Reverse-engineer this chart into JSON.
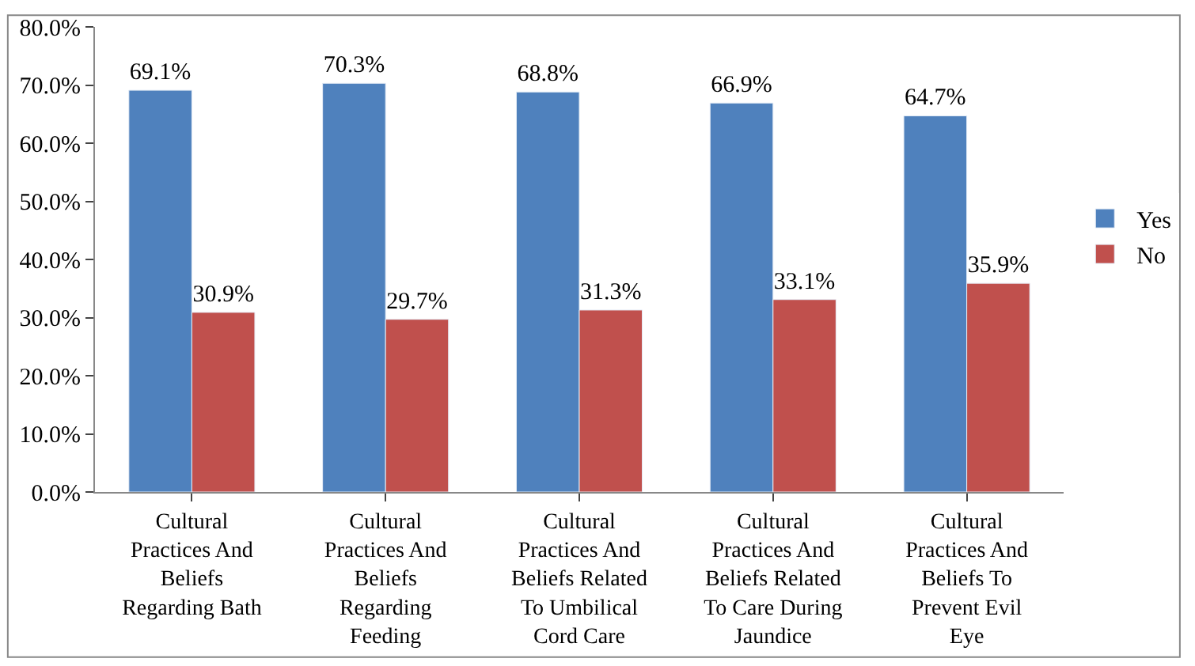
{
  "chart_data": {
    "type": "bar",
    "categories": [
      "Cultural Practices And Beliefs Regarding Bath",
      "Cultural Practices And Beliefs Regarding Feeding",
      "Cultural Practices And Beliefs Related To Umbilical Cord Care",
      "Cultural Practices And Beliefs Related To Care During Jaundice",
      "Cultural Practices And Beliefs To Prevent Evil Eye"
    ],
    "series": [
      {
        "name": "Yes",
        "color": "#4f81bd",
        "values": [
          69.1,
          70.3,
          68.8,
          66.9,
          64.7
        ],
        "value_labels": [
          "69.1%",
          "70.3%",
          "68.8%",
          "66.9%",
          "64.7%"
        ]
      },
      {
        "name": "No",
        "color": "#c0504d",
        "values": [
          30.9,
          29.7,
          31.3,
          33.1,
          35.9
        ],
        "value_labels": [
          "30.9%",
          "29.7%",
          "31.3%",
          "33.1%",
          "35.9%"
        ]
      }
    ],
    "ylim": [
      0,
      80
    ],
    "yticks": [
      {
        "value": 0,
        "label": "0.0%"
      },
      {
        "value": 10,
        "label": "10.0%"
      },
      {
        "value": 20,
        "label": "20.0%"
      },
      {
        "value": 30,
        "label": "30.0%"
      },
      {
        "value": 40,
        "label": "40.0%"
      },
      {
        "value": 50,
        "label": "50.0%"
      },
      {
        "value": 60,
        "label": "60.0%"
      },
      {
        "value": 70,
        "label": "70.0%"
      },
      {
        "value": 80,
        "label": "80.0%"
      }
    ],
    "legend": "right"
  }
}
